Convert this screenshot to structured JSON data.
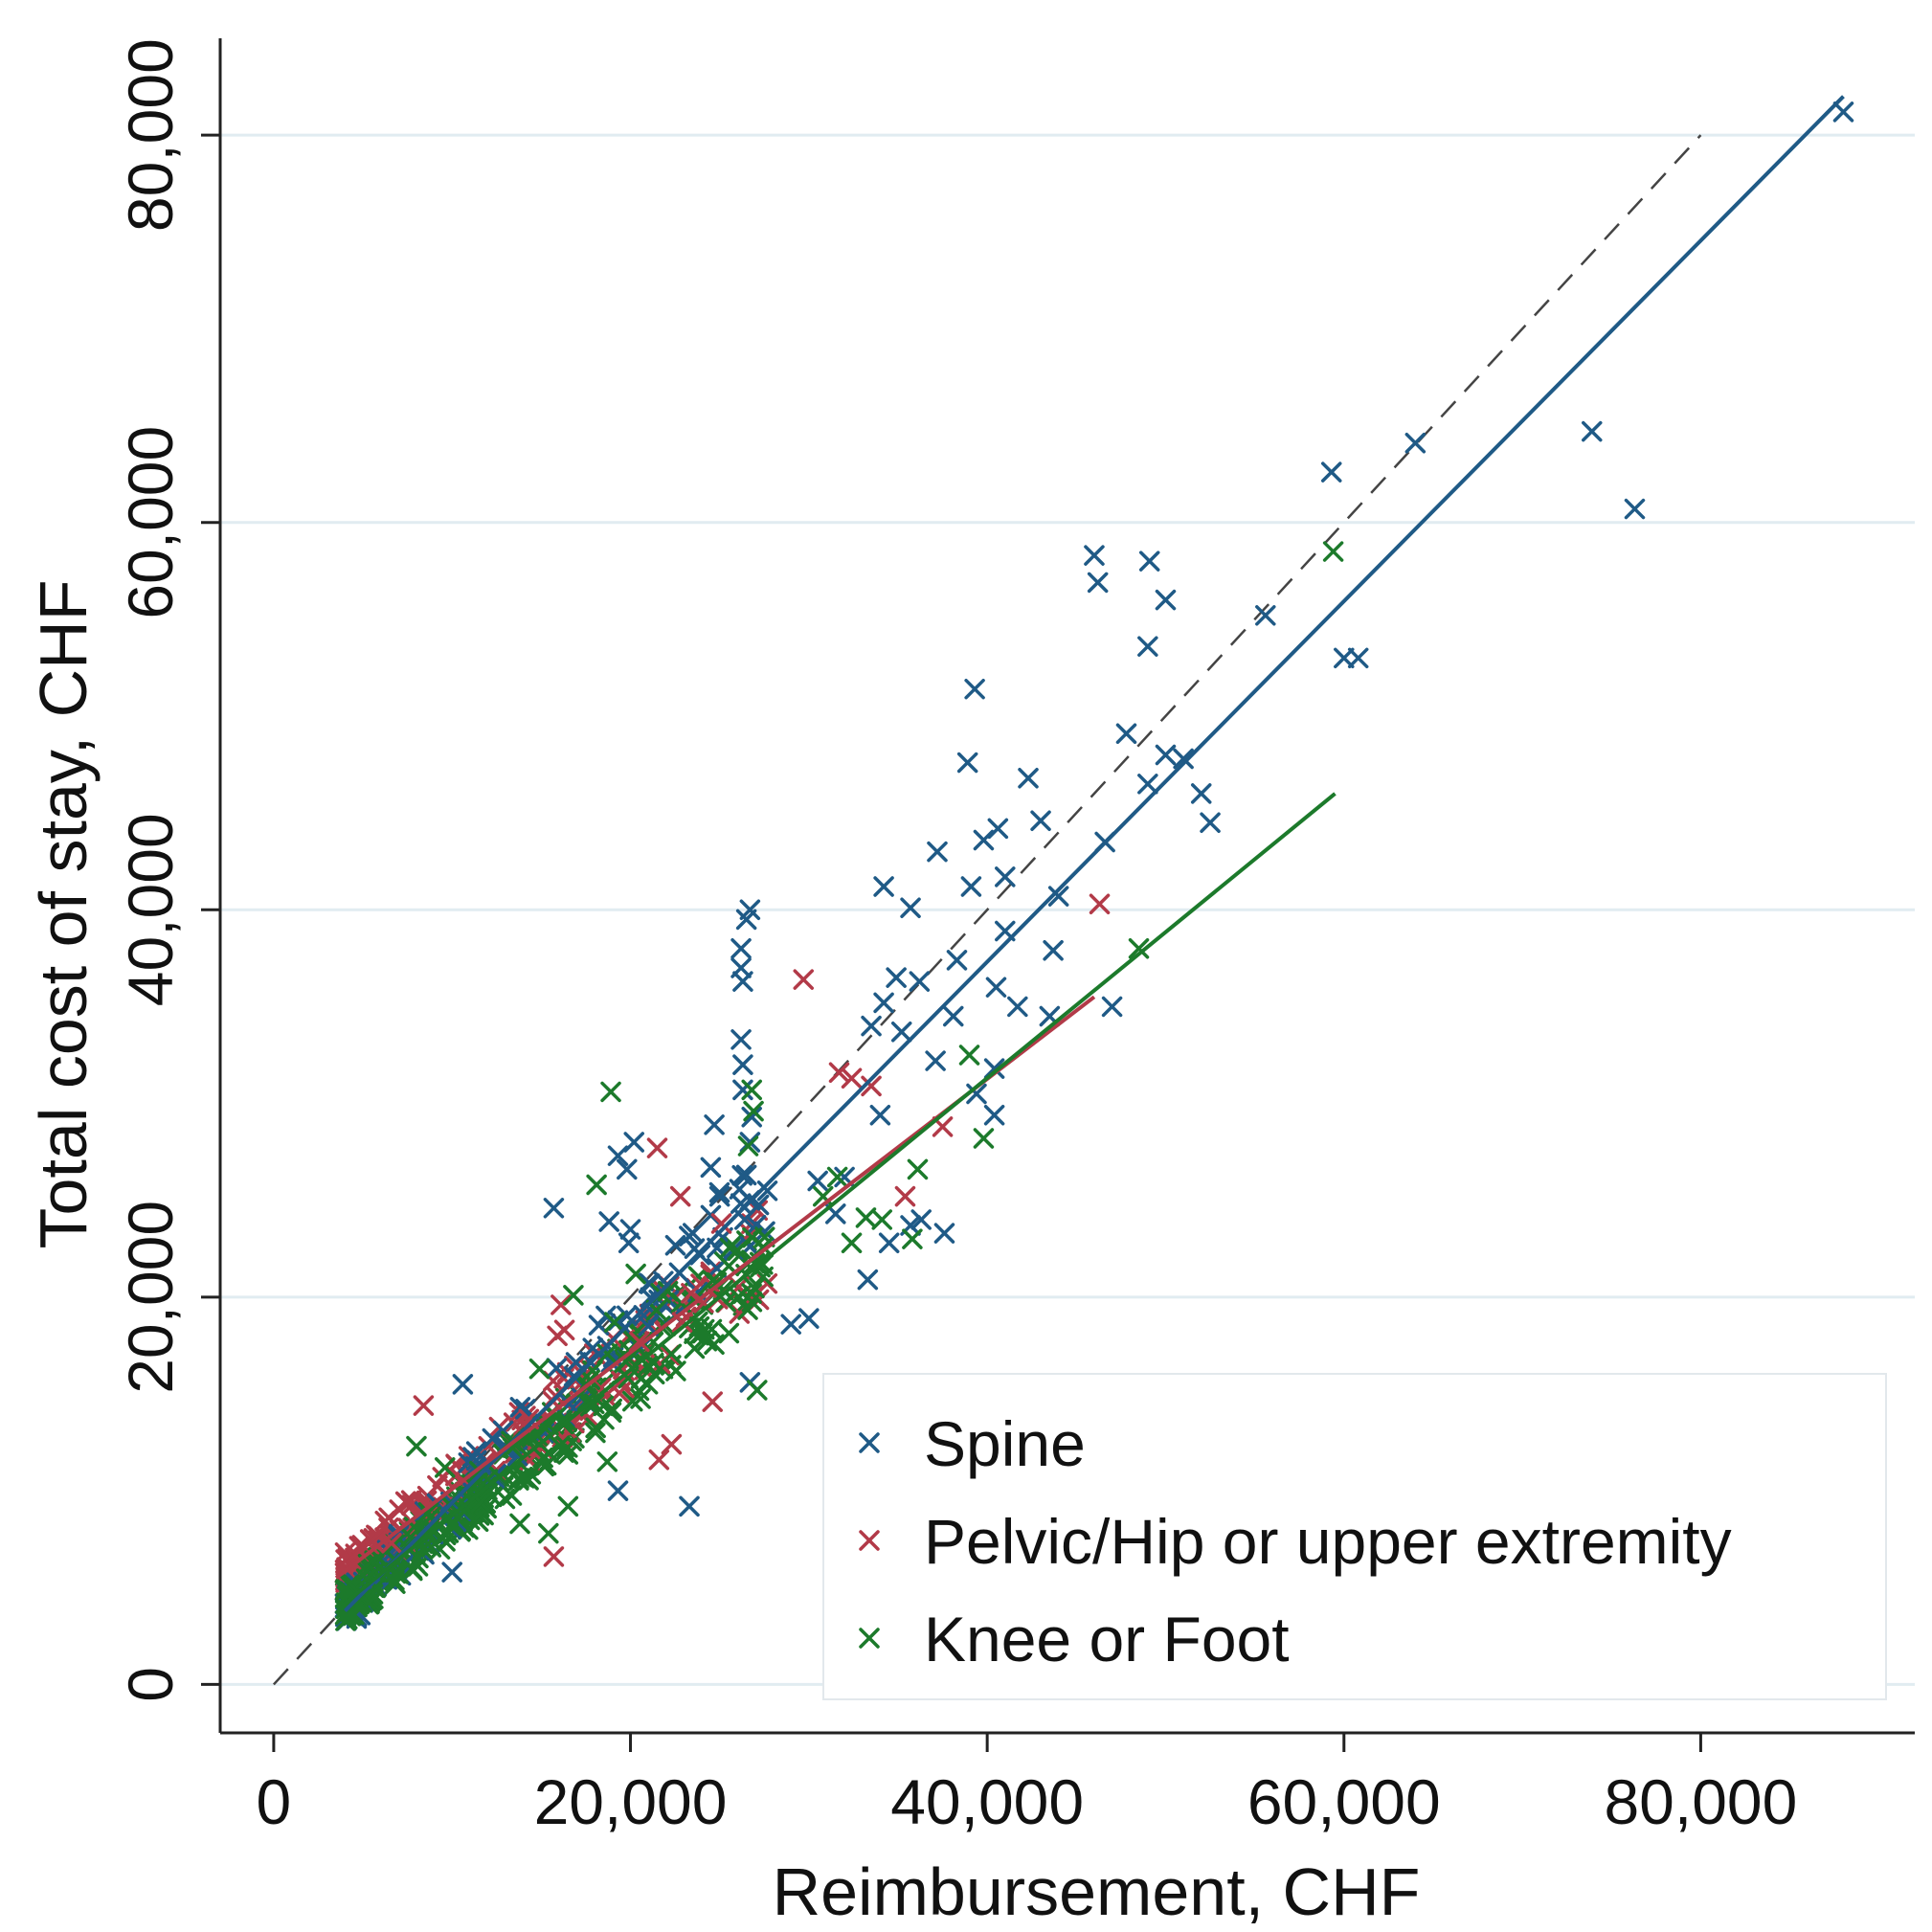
{
  "chart_data": {
    "type": "scatter",
    "title": "",
    "xlabel": "Reimbursement, CHF",
    "ylabel": "Total cost of stay, CHF",
    "xlim": [
      -3000,
      92000
    ],
    "ylim": [
      -2500,
      85000
    ],
    "xticks": [
      0,
      20000,
      40000,
      60000,
      80000
    ],
    "xtick_labels": [
      "0",
      "20,000",
      "40,000",
      "60,000",
      "80,000"
    ],
    "yticks": [
      0,
      20000,
      40000,
      60000,
      80000
    ],
    "ytick_labels": [
      "0",
      "20,000",
      "40,000",
      "60,000",
      "80,000"
    ],
    "grid": "horizontal",
    "legend_position": "bottom-right",
    "reference_line": {
      "name": "identity",
      "x": [
        0,
        80000
      ],
      "y": [
        0,
        80000
      ],
      "style": "dashed",
      "color": "#444444"
    },
    "series": [
      {
        "name": "Spine",
        "color": "#1f5a86",
        "fit_line": {
          "x": [
            4000,
            88000
          ],
          "y": [
            3800,
            82000
          ]
        },
        "points": [
          [
            88000,
            81200
          ],
          [
            64000,
            64100
          ],
          [
            59300,
            62600
          ],
          [
            73900,
            64700
          ],
          [
            76300,
            60700
          ],
          [
            46000,
            58300
          ],
          [
            46200,
            56900
          ],
          [
            49100,
            58000
          ],
          [
            50000,
            56000
          ],
          [
            55600,
            55200
          ],
          [
            49000,
            53600
          ],
          [
            60000,
            53000
          ],
          [
            60800,
            53000
          ],
          [
            39300,
            51400
          ],
          [
            47800,
            49100
          ],
          [
            51000,
            47800
          ],
          [
            50000,
            48000
          ],
          [
            52000,
            46000
          ],
          [
            52500,
            44500
          ],
          [
            49000,
            46500
          ],
          [
            38900,
            47600
          ],
          [
            42300,
            46800
          ],
          [
            43000,
            44600
          ],
          [
            46600,
            43500
          ],
          [
            37200,
            43000
          ],
          [
            39800,
            43600
          ],
          [
            40600,
            44200
          ],
          [
            41000,
            41700
          ],
          [
            39100,
            41200
          ],
          [
            34200,
            41200
          ],
          [
            35700,
            40100
          ],
          [
            44000,
            40700
          ],
          [
            41000,
            38900
          ],
          [
            38300,
            37400
          ],
          [
            40500,
            36000
          ],
          [
            41700,
            35000
          ],
          [
            43500,
            34500
          ],
          [
            47000,
            35000
          ],
          [
            43700,
            37900
          ],
          [
            34900,
            36500
          ],
          [
            36200,
            36300
          ],
          [
            34200,
            35200
          ],
          [
            35200,
            33700
          ],
          [
            33500,
            34000
          ],
          [
            38100,
            34500
          ],
          [
            26700,
            40000
          ],
          [
            26500,
            39500
          ],
          [
            26200,
            38000
          ],
          [
            26200,
            37000
          ],
          [
            26300,
            36300
          ],
          [
            26200,
            33300
          ],
          [
            26300,
            32000
          ],
          [
            26300,
            30700
          ],
          [
            26800,
            29300
          ],
          [
            26700,
            28000
          ],
          [
            26500,
            26300
          ],
          [
            26700,
            25000
          ],
          [
            26400,
            24000
          ],
          [
            37100,
            32200
          ],
          [
            39400,
            30500
          ],
          [
            40400,
            31800
          ],
          [
            40400,
            29400
          ],
          [
            34000,
            29400
          ],
          [
            24700,
            28900
          ],
          [
            24500,
            26700
          ],
          [
            20200,
            28000
          ],
          [
            19300,
            27300
          ],
          [
            19800,
            26600
          ],
          [
            25000,
            25200
          ],
          [
            15700,
            24600
          ],
          [
            18800,
            23900
          ],
          [
            20000,
            23500
          ],
          [
            19900,
            22800
          ],
          [
            23500,
            23300
          ],
          [
            37600,
            23300
          ],
          [
            33300,
            20900
          ],
          [
            29000,
            18600
          ],
          [
            30000,
            18900
          ],
          [
            26700,
            15600
          ],
          [
            21000,
            18500
          ],
          [
            10600,
            15500
          ],
          [
            19300,
            10000
          ],
          [
            23300,
            9200
          ],
          [
            10000,
            5800
          ],
          [
            35700,
            23700
          ],
          [
            36300,
            24000
          ],
          [
            32000,
            26200
          ],
          [
            30500,
            26000
          ],
          [
            34500,
            22800
          ],
          [
            31500,
            24300
          ]
        ]
      },
      {
        "name": "Pelvic/Hip or upper extremity",
        "color": "#b23a48",
        "fit_line": {
          "x": [
            3500,
            46000
          ],
          "y": [
            5500,
            35500
          ]
        },
        "points": [
          [
            46300,
            40300
          ],
          [
            29700,
            36400
          ],
          [
            31700,
            31600
          ],
          [
            32400,
            31300
          ],
          [
            33500,
            30900
          ],
          [
            37500,
            28800
          ],
          [
            21500,
            27700
          ],
          [
            22800,
            25200
          ],
          [
            35400,
            25200
          ],
          [
            25100,
            23800
          ],
          [
            16100,
            19600
          ],
          [
            16300,
            18300
          ],
          [
            15900,
            18000
          ],
          [
            8400,
            14400
          ],
          [
            14300,
            13700
          ],
          [
            24600,
            14600
          ],
          [
            22300,
            12400
          ],
          [
            21600,
            11600
          ],
          [
            15700,
            6600
          ],
          [
            6600,
            7300
          ],
          [
            23400,
            20200
          ],
          [
            24100,
            19700
          ],
          [
            22900,
            18700
          ],
          [
            24900,
            19900
          ],
          [
            20500,
            17700
          ]
        ]
      },
      {
        "name": "Knee or Foot",
        "color": "#1c7a2b",
        "fit_line": {
          "x": [
            4000,
            59500
          ],
          "y": [
            4200,
            46000
          ]
        },
        "points": [
          [
            59400,
            58500
          ],
          [
            48500,
            38000
          ],
          [
            39000,
            32500
          ],
          [
            39800,
            28200
          ],
          [
            36100,
            26600
          ],
          [
            35800,
            23000
          ],
          [
            26800,
            30700
          ],
          [
            26900,
            29600
          ],
          [
            26600,
            27800
          ],
          [
            18900,
            30600
          ],
          [
            18100,
            25800
          ],
          [
            30800,
            25200
          ],
          [
            33200,
            24100
          ],
          [
            32400,
            22800
          ],
          [
            34100,
            24000
          ],
          [
            31600,
            26200
          ],
          [
            27100,
            15200
          ],
          [
            16800,
            20100
          ],
          [
            15800,
            13800
          ],
          [
            13600,
            12400
          ],
          [
            18700,
            11500
          ],
          [
            8000,
            12300
          ],
          [
            9600,
            11200
          ],
          [
            11600,
            9400
          ],
          [
            15400,
            7800
          ],
          [
            16500,
            9200
          ],
          [
            13800,
            8300
          ],
          [
            19100,
            18700
          ],
          [
            21700,
            20200
          ],
          [
            26000,
            22400
          ],
          [
            22100,
            20300
          ],
          [
            21300,
            16600
          ],
          [
            12000,
            10600
          ],
          [
            14900,
            16300
          ],
          [
            20300,
            21200
          ]
        ]
      }
    ]
  }
}
